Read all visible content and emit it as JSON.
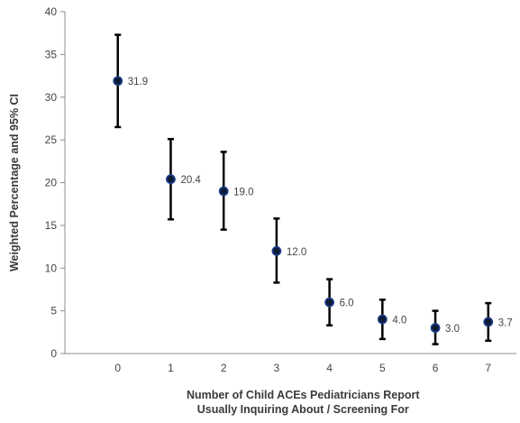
{
  "chart_data": {
    "type": "scatter",
    "title": "",
    "xlabel_lines": [
      "Number of Child ACEs Pediatricians Report",
      "Usually Inquiring About / Screening For"
    ],
    "ylabel": "Weighted Percentage and 95% CI",
    "xlim": [
      -1,
      7.6
    ],
    "ylim": [
      0,
      40
    ],
    "x_ticks": [
      0,
      1,
      2,
      3,
      4,
      5,
      6,
      7
    ],
    "y_ticks": [
      0,
      5,
      10,
      15,
      20,
      25,
      30,
      35,
      40
    ],
    "x_tick_labels": [
      "0",
      "1",
      "2",
      "3",
      "4",
      "5",
      "6",
      "7"
    ],
    "y_tick_labels": [
      "0",
      "5",
      "10",
      "15",
      "20",
      "25",
      "30",
      "35",
      "40"
    ],
    "grid": false,
    "legend": "none",
    "points": [
      {
        "x": 0,
        "y": 31.9,
        "ci_low": 26.5,
        "ci_high": 37.3,
        "label": "31.9"
      },
      {
        "x": 1,
        "y": 20.4,
        "ci_low": 15.7,
        "ci_high": 25.1,
        "label": "20.4"
      },
      {
        "x": 2,
        "y": 19.0,
        "ci_low": 14.5,
        "ci_high": 23.6,
        "label": "19.0"
      },
      {
        "x": 3,
        "y": 12.0,
        "ci_low": 8.3,
        "ci_high": 15.8,
        "label": "12.0"
      },
      {
        "x": 4,
        "y": 6.0,
        "ci_low": 3.3,
        "ci_high": 8.7,
        "label": "6.0"
      },
      {
        "x": 5,
        "y": 4.0,
        "ci_low": 1.7,
        "ci_high": 6.3,
        "label": "4.0"
      },
      {
        "x": 6,
        "y": 3.0,
        "ci_low": 1.1,
        "ci_high": 5.0,
        "label": "3.0"
      },
      {
        "x": 7,
        "y": 3.7,
        "ci_low": 1.5,
        "ci_high": 5.9,
        "label": "3.7"
      }
    ],
    "marker_fill": "#0d1b36",
    "marker_edge": "#1f3f8f",
    "errorbar_color": "#000000",
    "axis_color": "#8c8c8c",
    "text_color": "#444444"
  }
}
